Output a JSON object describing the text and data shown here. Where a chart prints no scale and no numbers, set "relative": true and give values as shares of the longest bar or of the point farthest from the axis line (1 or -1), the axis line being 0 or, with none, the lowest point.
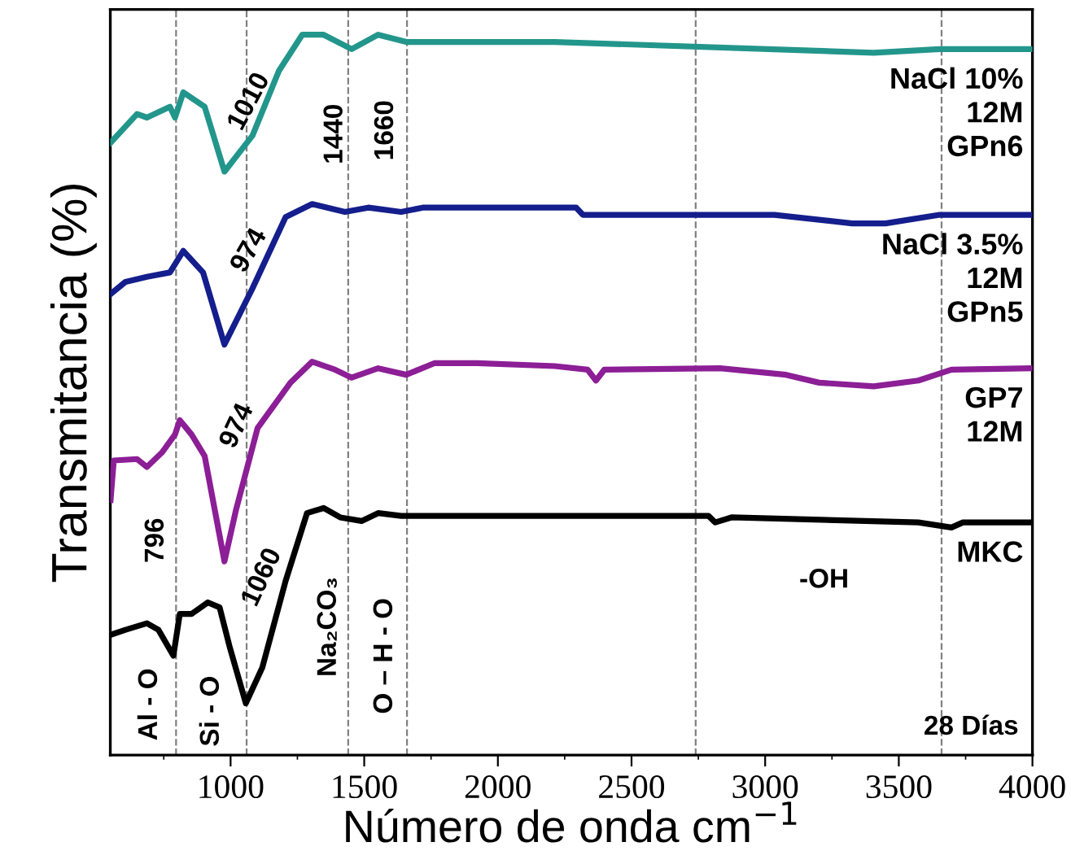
{
  "chart_data": {
    "type": "line",
    "relative": true,
    "xlabel": "Número de onda cm$^{−1}$",
    "ylabel": "Transmitancia (%)",
    "xlim": [
      550,
      4000
    ],
    "xticks": [
      1000,
      1500,
      2000,
      2500,
      3000,
      3500,
      4000
    ],
    "tick_labels": "x",
    "grid": false,
    "legend": false,
    "marker": "none",
    "line_style": "solid",
    "series": [
      {
        "name": "NaCl 10%\n12M\nGPn6",
        "color": "#23968c",
        "x": [
          551,
          650,
          687,
          773,
          792,
          823,
          903,
          977,
          1082,
          1181,
          1268,
          1348,
          1453,
          1552,
          1657,
          2213,
          3406,
          3653,
          4000
        ],
        "values": [
          0.85,
          0.89,
          0.885,
          0.9,
          0.885,
          0.92,
          0.9,
          0.81,
          0.86,
          0.95,
          1.0,
          1.0,
          0.98,
          1.0,
          0.99,
          0.99,
          0.975,
          0.98,
          0.98
        ]
      },
      {
        "name": "NaCl 3.5%\n12M\nGPn5",
        "color": "#141e8c",
        "x": [
          551,
          607,
          687,
          773,
          823,
          897,
          977,
          1082,
          1206,
          1305,
          1428,
          1515,
          1638,
          1719,
          2293,
          2318,
          3035,
          3326,
          3450,
          3653,
          4000
        ],
        "values": [
          0.64,
          0.657,
          0.664,
          0.67,
          0.7,
          0.67,
          0.57,
          0.648,
          0.747,
          0.765,
          0.754,
          0.76,
          0.754,
          0.76,
          0.76,
          0.75,
          0.75,
          0.738,
          0.738,
          0.75,
          0.75
        ]
      },
      {
        "name": "GP7\n12M",
        "color": "#8c1e96",
        "x": [
          551,
          563,
          650,
          687,
          743,
          792,
          810,
          854,
          903,
          977,
          1020,
          1101,
          1224,
          1305,
          1391,
          1453,
          1552,
          1657,
          1762,
          1923,
          2213,
          2336,
          2367,
          2398,
          2831,
          3078,
          3202,
          3406,
          3573,
          3697,
          4000
        ],
        "values": [
          0.354,
          0.409,
          0.411,
          0.4,
          0.42,
          0.445,
          0.465,
          0.445,
          0.415,
          0.269,
          0.34,
          0.454,
          0.517,
          0.546,
          0.535,
          0.524,
          0.537,
          0.528,
          0.544,
          0.544,
          0.54,
          0.535,
          0.52,
          0.535,
          0.537,
          0.528,
          0.517,
          0.512,
          0.52,
          0.535,
          0.537
        ]
      },
      {
        "name": "MKC",
        "color": "#000000",
        "x": [
          551,
          607,
          687,
          730,
          786,
          810,
          854,
          915,
          959,
          996,
          1057,
          1119,
          1206,
          1286,
          1348,
          1410,
          1490,
          1552,
          1638,
          2337,
          2788,
          2813,
          2874,
          3573,
          3697,
          3740,
          4000
        ],
        "values": [
          0.167,
          0.174,
          0.183,
          0.174,
          0.138,
          0.196,
          0.196,
          0.212,
          0.205,
          0.151,
          0.072,
          0.122,
          0.242,
          0.336,
          0.343,
          0.33,
          0.325,
          0.336,
          0.332,
          0.332,
          0.332,
          0.323,
          0.33,
          0.323,
          0.316,
          0.323,
          0.323
        ]
      }
    ],
    "ref_lines": [
      {
        "axis": "x",
        "value": 796,
        "color": "#808080",
        "line_style": "dashed"
      },
      {
        "axis": "x",
        "value": 1060,
        "color": "#808080",
        "line_style": "dashed"
      },
      {
        "axis": "x",
        "value": 1440,
        "color": "#808080",
        "line_style": "dashed"
      },
      {
        "axis": "x",
        "value": 1660,
        "color": "#808080",
        "line_style": "dashed"
      },
      {
        "axis": "x",
        "value": 2740,
        "color": "#808080",
        "line_style": "dashed"
      },
      {
        "axis": "x",
        "value": 3660,
        "color": "#808080",
        "line_style": "dashed"
      }
    ],
    "annotations": [
      "1010",
      "1440",
      "1660",
      "974",
      "974",
      "796",
      "1060",
      "Na₂CO₃",
      "O – H - O",
      "Al - O",
      "Si - O",
      "-OH",
      "28 Días"
    ]
  }
}
